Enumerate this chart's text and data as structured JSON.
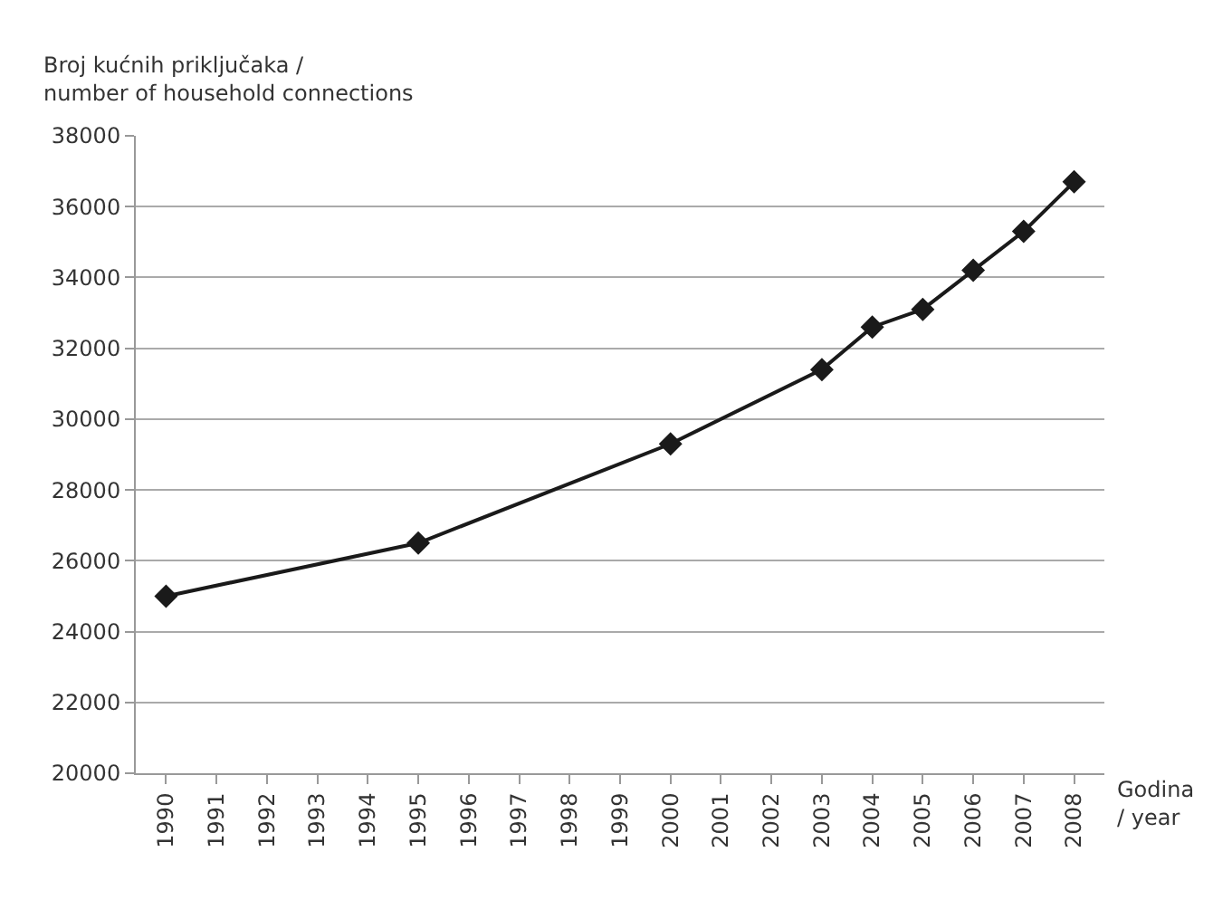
{
  "chart_data": {
    "type": "line",
    "ylabel": "Broj kućnih priključaka /\nnumber of household connections",
    "xlabel": "Godina\n/ year",
    "categories": [
      "1990",
      "1991",
      "1992",
      "1993",
      "1994",
      "1995",
      "1996",
      "1997",
      "1998",
      "1999",
      "2000",
      "2001",
      "2002",
      "2003",
      "2004",
      "2005",
      "2006",
      "2007",
      "2008"
    ],
    "series": [
      {
        "color": "#1a1a1a",
        "values": [
          25000,
          null,
          null,
          null,
          null,
          26500,
          null,
          null,
          null,
          null,
          29300,
          null,
          null,
          31400,
          32600,
          33100,
          34200,
          35300,
          36700
        ]
      }
    ],
    "ylim": [
      20000,
      38000
    ],
    "yticks": [
      20000,
      22000,
      24000,
      26000,
      28000,
      30000,
      32000,
      34000,
      36000,
      38000
    ],
    "grid": "y",
    "marker": "diamond",
    "line_style": "solid"
  }
}
